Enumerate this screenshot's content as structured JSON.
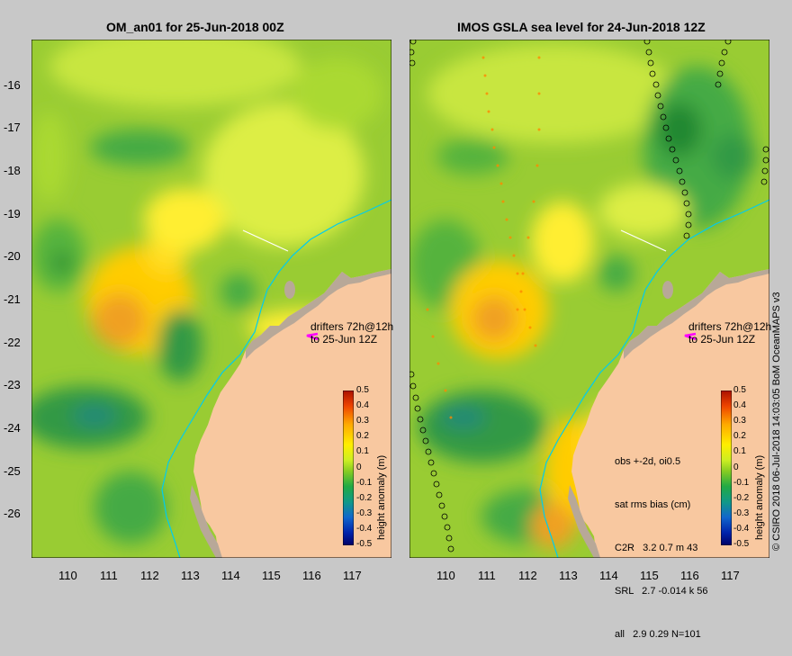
{
  "left_panel": {
    "title": "OM_an01 for 25-Jun-2018 00Z",
    "drifter_note_1": "drifters 72h@12h",
    "drifter_note_2": "to 25-Jun 12Z"
  },
  "right_panel": {
    "title": "IMOS GSLA sea level  for 24-Jun-2018 12Z",
    "drifter_note_1": "drifters 72h@12h",
    "drifter_note_2": "to 25-Jun 12Z",
    "stats": [
      "obs +-2d, oi0.5",
      "sat rms bias (cm)",
      "C2R   3.2 0.7 m 43",
      "SRL   2.7 -0.014 k 56",
      "all   2.9 0.29 N=101"
    ]
  },
  "axes": {
    "lat_ticks": [
      "-16",
      "-17",
      "-18",
      "-19",
      "-20",
      "-21",
      "-22",
      "-23",
      "-24",
      "-25",
      "-26"
    ],
    "lon_ticks": [
      "110",
      "111",
      "112",
      "113",
      "114",
      "115",
      "116",
      "117"
    ]
  },
  "colorbar": {
    "label": "height anomaly (m)",
    "ticks": [
      "0.5",
      "0.4",
      "0.3",
      "0.2",
      "0.1",
      "0",
      "-0.1",
      "-0.2",
      "-0.3",
      "-0.4",
      "-0.5"
    ]
  },
  "credit": "© CSIRO 2018  06-Jul-2018 14:03:05 BoM OceanMAPS v3",
  "colors": {
    "land": "#f8c8a0",
    "shelf": "#b8a898",
    "field_base": "#99cc33",
    "drifter_arrow": "#ff00ff",
    "coast_line": "#00ccee"
  }
}
